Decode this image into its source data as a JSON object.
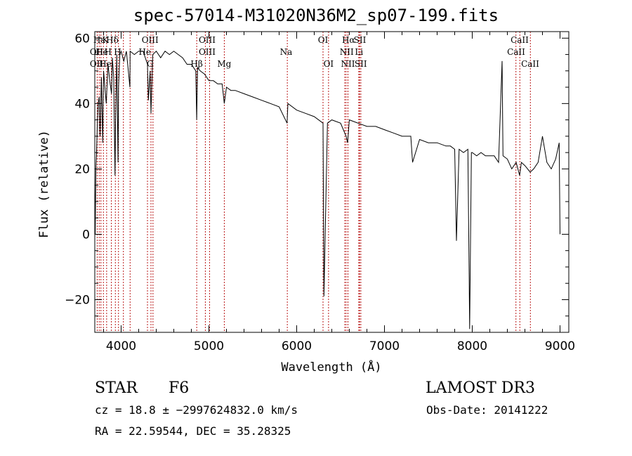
{
  "chart_data": {
    "type": "line",
    "title": "spec-57014-M31020N36M2_sp07-199.fits",
    "xlabel": "Wavelength (Å)",
    "ylabel": "Flux (relative)",
    "xlim": [
      3700,
      9100
    ],
    "ylim": [
      -30,
      62
    ],
    "xticks": [
      4000,
      5000,
      6000,
      7000,
      8000,
      9000
    ],
    "yticks": [
      -20,
      0,
      20,
      40,
      60
    ],
    "grid": false,
    "series": [
      {
        "name": "spectrum",
        "x": [
          3700,
          3705,
          3712,
          3720,
          3730,
          3738,
          3750,
          3760,
          3775,
          3790,
          3800,
          3815,
          3830,
          3850,
          3870,
          3890,
          3900,
          3915,
          3930,
          3935,
          3950,
          3965,
          3970,
          3985,
          4000,
          4030,
          4060,
          4100,
          4102,
          4150,
          4200,
          4250,
          4300,
          4310,
          4330,
          4340,
          4360,
          4400,
          4450,
          4500,
          4550,
          4600,
          4650,
          4700,
          4750,
          4800,
          4850,
          4861,
          4870,
          4900,
          4950,
          5000,
          5050,
          5100,
          5150,
          5175,
          5200,
          5250,
          5300,
          5400,
          5500,
          5600,
          5700,
          5800,
          5890,
          5900,
          6000,
          6100,
          6200,
          6300,
          6310,
          6350,
          6400,
          6500,
          6563,
          6580,
          6600,
          6700,
          6800,
          6900,
          7000,
          7100,
          7200,
          7300,
          7320,
          7400,
          7500,
          7600,
          7700,
          7750,
          7800,
          7820,
          7850,
          7900,
          7950,
          7970,
          7990,
          8000,
          8050,
          8100,
          8150,
          8200,
          8250,
          8300,
          8340,
          8350,
          8400,
          8450,
          8500,
          8540,
          8560,
          8600,
          8660,
          8700,
          8750,
          8800,
          8850,
          8900,
          8950,
          8990,
          9000
        ],
        "values": [
          15,
          0,
          20,
          25,
          35,
          40,
          42,
          30,
          48,
          28,
          50,
          45,
          40,
          52,
          47,
          43,
          54,
          48,
          18,
          32,
          55,
          22,
          45,
          55,
          56,
          53,
          56,
          45,
          56,
          55,
          56,
          56,
          52,
          41,
          50,
          37,
          55,
          56,
          54,
          56,
          55,
          56,
          55,
          54,
          52,
          52,
          50,
          35,
          51,
          50,
          49,
          47,
          47,
          46,
          46,
          40,
          45,
          44,
          44,
          43,
          42,
          41,
          40,
          39,
          34,
          40,
          38,
          37,
          36,
          34,
          -19,
          34,
          35,
          34,
          30,
          28,
          35,
          34,
          33,
          33,
          32,
          31,
          30,
          30,
          22,
          29,
          28,
          28,
          27,
          27,
          26,
          -2,
          26,
          25,
          26,
          -29,
          25,
          25,
          24,
          25,
          24,
          24,
          24,
          22,
          53,
          24,
          23,
          20,
          22,
          18,
          22,
          21,
          19,
          20,
          22,
          30,
          22,
          20,
          23,
          28,
          0
        ],
        "values_note": "relative flux"
      }
    ],
    "line_labels": [
      {
        "w": 3750,
        "row": 0,
        "text": "Hε"
      },
      {
        "w": 3820,
        "row": 0,
        "text": "K"
      },
      {
        "w": 3900,
        "row": 0,
        "text": "Hδ"
      },
      {
        "w": 4330,
        "row": 0,
        "text": "OIII"
      },
      {
        "w": 4980,
        "row": 0,
        "text": "OIII"
      },
      {
        "w": 6300,
        "row": 0,
        "text": "OI"
      },
      {
        "w": 6590,
        "row": 0,
        "text": "Hα"
      },
      {
        "w": 6720,
        "row": 0,
        "text": "SII"
      },
      {
        "w": 8540,
        "row": 0,
        "text": "CaII"
      },
      {
        "w": 3720,
        "row": 1,
        "text": "OII"
      },
      {
        "w": 3780,
        "row": 1,
        "text": "He"
      },
      {
        "w": 3850,
        "row": 1,
        "text": "H"
      },
      {
        "w": 3960,
        "row": 1,
        "text": "H"
      },
      {
        "w": 4270,
        "row": 1,
        "text": "He"
      },
      {
        "w": 4980,
        "row": 1,
        "text": "OIII"
      },
      {
        "w": 5880,
        "row": 1,
        "text": "Na"
      },
      {
        "w": 6570,
        "row": 1,
        "text": "NII"
      },
      {
        "w": 6710,
        "row": 1,
        "text": "Li"
      },
      {
        "w": 8500,
        "row": 1,
        "text": "CaII"
      },
      {
        "w": 3720,
        "row": 2,
        "text": "OII"
      },
      {
        "w": 3820,
        "row": 2,
        "text": "He"
      },
      {
        "w": 4330,
        "row": 2,
        "text": "G"
      },
      {
        "w": 4861,
        "row": 2,
        "text": "Hβ"
      },
      {
        "w": 5175,
        "row": 2,
        "text": "Mg"
      },
      {
        "w": 6363,
        "row": 2,
        "text": "OI"
      },
      {
        "w": 6584,
        "row": 2,
        "text": "NII"
      },
      {
        "w": 6730,
        "row": 2,
        "text": "SII"
      },
      {
        "w": 8660,
        "row": 2,
        "text": "CaII"
      }
    ],
    "line_marks": [
      3727,
      3750,
      3770,
      3798,
      3835,
      3889,
      3934,
      3970,
      4026,
      4102,
      4300,
      4340,
      4363,
      4861,
      4959,
      5007,
      5175,
      5893,
      6300,
      6363,
      6548,
      6563,
      6584,
      6708,
      6716,
      6731,
      8498,
      8542,
      8662
    ]
  },
  "info": {
    "class_label": "STAR",
    "subclass": "F6",
    "survey": "LAMOST DR3",
    "cz_line": "cz = 18.8 ± −2997624832.0 km/s",
    "obs_date": "Obs-Date: 20141222",
    "coords": "RA =  22.59544, DEC =  35.28325"
  }
}
